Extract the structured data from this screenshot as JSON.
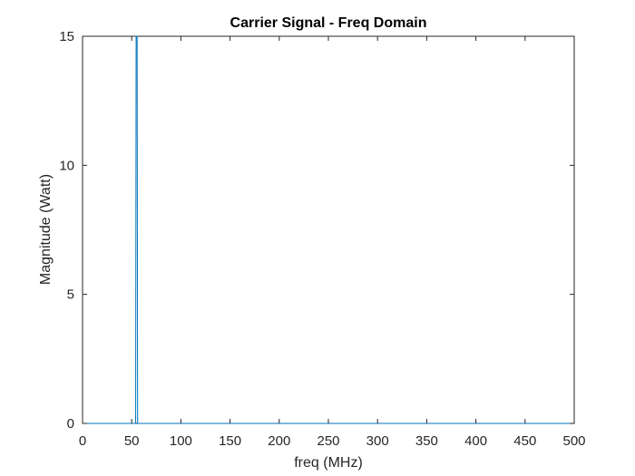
{
  "chart_data": {
    "type": "line",
    "title": "Carrier Signal - Freq Domain",
    "xlabel": "freq (MHz)",
    "ylabel": "Magnitude (Watt)",
    "xlim": [
      0,
      500
    ],
    "ylim": [
      0,
      15
    ],
    "x_ticks": [
      "0",
      "50",
      "100",
      "150",
      "200",
      "250",
      "300",
      "350",
      "400",
      "450",
      "500"
    ],
    "y_ticks": [
      "0",
      "5",
      "10",
      "15"
    ],
    "grid": false,
    "series": [
      {
        "color": "#0072BD",
        "x": [
          0,
          10,
          20,
          30,
          40,
          50,
          53,
          54,
          54.5,
          55,
          55.5,
          56,
          57,
          60,
          70,
          100,
          150,
          200,
          250,
          300,
          350,
          400,
          450,
          500
        ],
        "y": [
          0,
          0,
          0,
          0,
          0,
          0,
          0,
          0,
          15,
          15,
          15,
          0,
          0,
          0,
          0,
          0,
          0,
          0,
          0,
          0,
          0,
          0,
          0,
          0
        ]
      }
    ]
  },
  "colors": {
    "axes": "#262626",
    "series": "#0072BD",
    "background": "#ffffff"
  }
}
